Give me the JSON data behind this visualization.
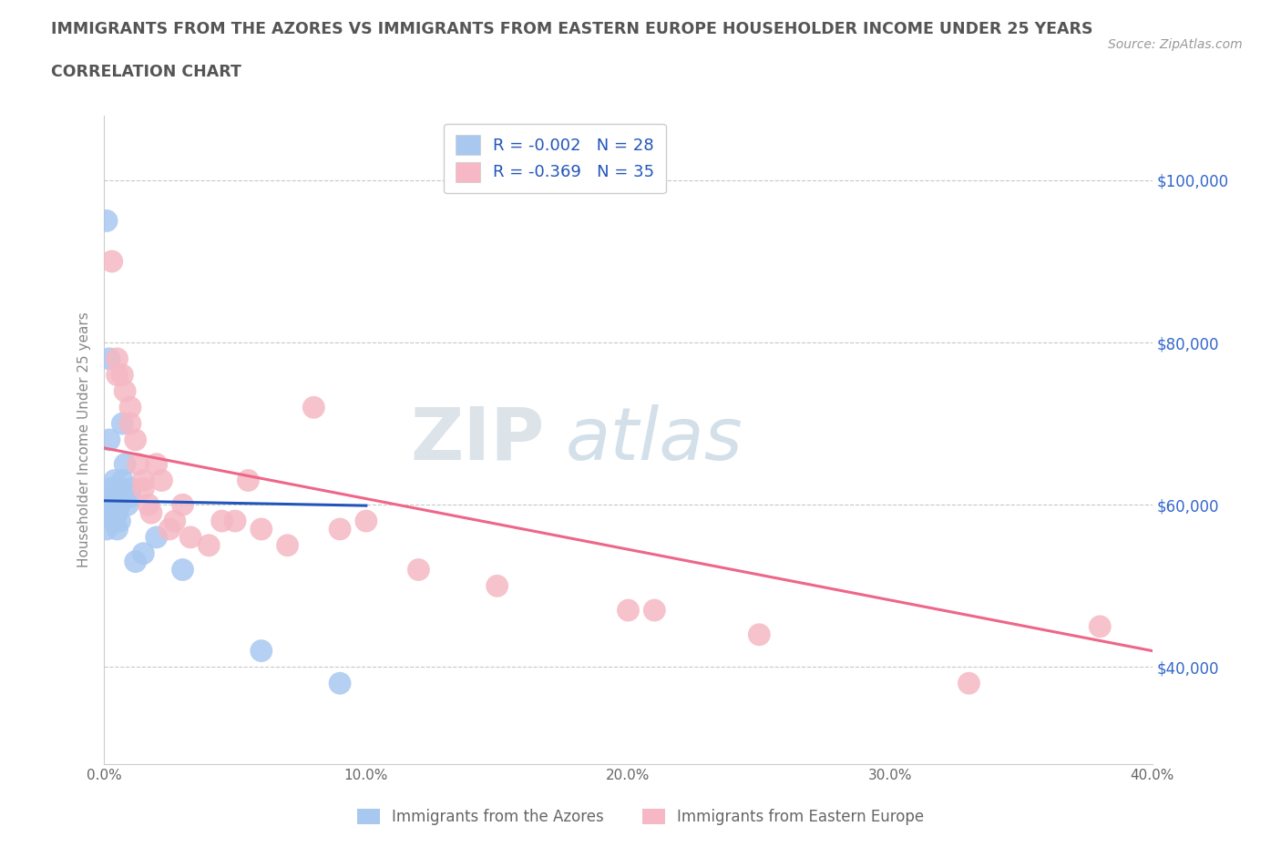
{
  "title_line1": "IMMIGRANTS FROM THE AZORES VS IMMIGRANTS FROM EASTERN EUROPE HOUSEHOLDER INCOME UNDER 25 YEARS",
  "title_line2": "CORRELATION CHART",
  "source_text": "Source: ZipAtlas.com",
  "ylabel": "Householder Income Under 25 years",
  "xlabel_ticks": [
    "0.0%",
    "10.0%",
    "20.0%",
    "30.0%",
    "40.0%"
  ],
  "xlabel_vals": [
    0.0,
    0.1,
    0.2,
    0.3,
    0.4
  ],
  "ytick_labels": [
    "$40,000",
    "$60,000",
    "$80,000",
    "$100,000"
  ],
  "ytick_vals": [
    40000,
    60000,
    80000,
    100000
  ],
  "xlim": [
    0.0,
    0.4
  ],
  "ylim": [
    28000,
    108000
  ],
  "watermark_text": "ZIP",
  "watermark_text2": "atlas",
  "legend_blue_label": "Immigrants from the Azores",
  "legend_pink_label": "Immigrants from Eastern Europe",
  "R_blue": -0.002,
  "N_blue": 28,
  "R_pink": -0.369,
  "N_pink": 35,
  "blue_scatter_color": "#a8c8f0",
  "pink_scatter_color": "#f5b8c4",
  "line_blue_color": "#2255bb",
  "line_pink_color": "#ee6688",
  "grid_color": "#c8c8c8",
  "title_color": "#555555",
  "source_color": "#999999",
  "legend_text_color": "#2255bb",
  "ytick_color": "#3366cc",
  "xtick_color": "#666666",
  "azores_x": [
    0.001,
    0.001,
    0.002,
    0.002,
    0.002,
    0.003,
    0.003,
    0.003,
    0.004,
    0.004,
    0.005,
    0.005,
    0.005,
    0.006,
    0.006,
    0.006,
    0.007,
    0.007,
    0.008,
    0.009,
    0.01,
    0.01,
    0.012,
    0.015,
    0.02,
    0.03,
    0.06,
    0.09
  ],
  "azores_y": [
    95000,
    57000,
    78000,
    68000,
    61000,
    62000,
    60000,
    59000,
    63000,
    58000,
    62000,
    59000,
    57000,
    60000,
    61000,
    58000,
    63000,
    70000,
    65000,
    60000,
    62000,
    61000,
    53000,
    54000,
    56000,
    52000,
    42000,
    38000
  ],
  "eastern_x": [
    0.003,
    0.005,
    0.005,
    0.007,
    0.008,
    0.01,
    0.01,
    0.012,
    0.013,
    0.015,
    0.015,
    0.017,
    0.018,
    0.02,
    0.022,
    0.025,
    0.027,
    0.03,
    0.033,
    0.04,
    0.045,
    0.05,
    0.055,
    0.06,
    0.07,
    0.08,
    0.09,
    0.1,
    0.12,
    0.15,
    0.2,
    0.21,
    0.25,
    0.33,
    0.38
  ],
  "eastern_y": [
    90000,
    78000,
    76000,
    76000,
    74000,
    72000,
    70000,
    68000,
    65000,
    62000,
    63000,
    60000,
    59000,
    65000,
    63000,
    57000,
    58000,
    60000,
    56000,
    55000,
    58000,
    58000,
    63000,
    57000,
    55000,
    72000,
    57000,
    58000,
    52000,
    50000,
    47000,
    47000,
    44000,
    38000,
    45000
  ],
  "blue_line_x": [
    0.0,
    0.1
  ],
  "blue_line_y": [
    60500,
    59900
  ],
  "pink_line_x": [
    0.0,
    0.4
  ],
  "pink_line_y": [
    67000,
    42000
  ]
}
